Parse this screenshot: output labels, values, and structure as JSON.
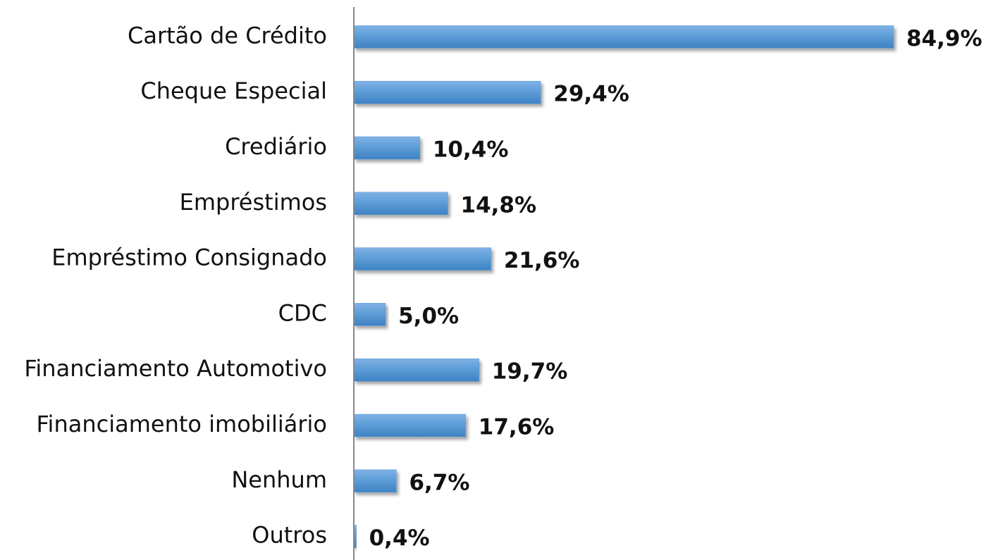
{
  "chart_data": {
    "type": "bar",
    "orientation": "horizontal",
    "categories": [
      "Cartão de Crédito",
      "Cheque Especial",
      "Crediário",
      "Empréstimos",
      "Empréstimo Consignado",
      "CDC",
      "Financiamento Automotivo",
      "Financiamento imobiliário",
      "Nenhum",
      "Outros"
    ],
    "values": [
      84.9,
      29.4,
      10.4,
      14.8,
      21.6,
      5.0,
      19.7,
      17.6,
      6.7,
      0.4
    ],
    "value_labels": [
      "84,9%",
      "29,4%",
      "10,4%",
      "14,8%",
      "21,6%",
      "5,0%",
      "19,7%",
      "17,6%",
      "6,7%",
      "0,4%"
    ],
    "color": "#5b9bd5",
    "xlim": [
      0,
      90
    ]
  }
}
